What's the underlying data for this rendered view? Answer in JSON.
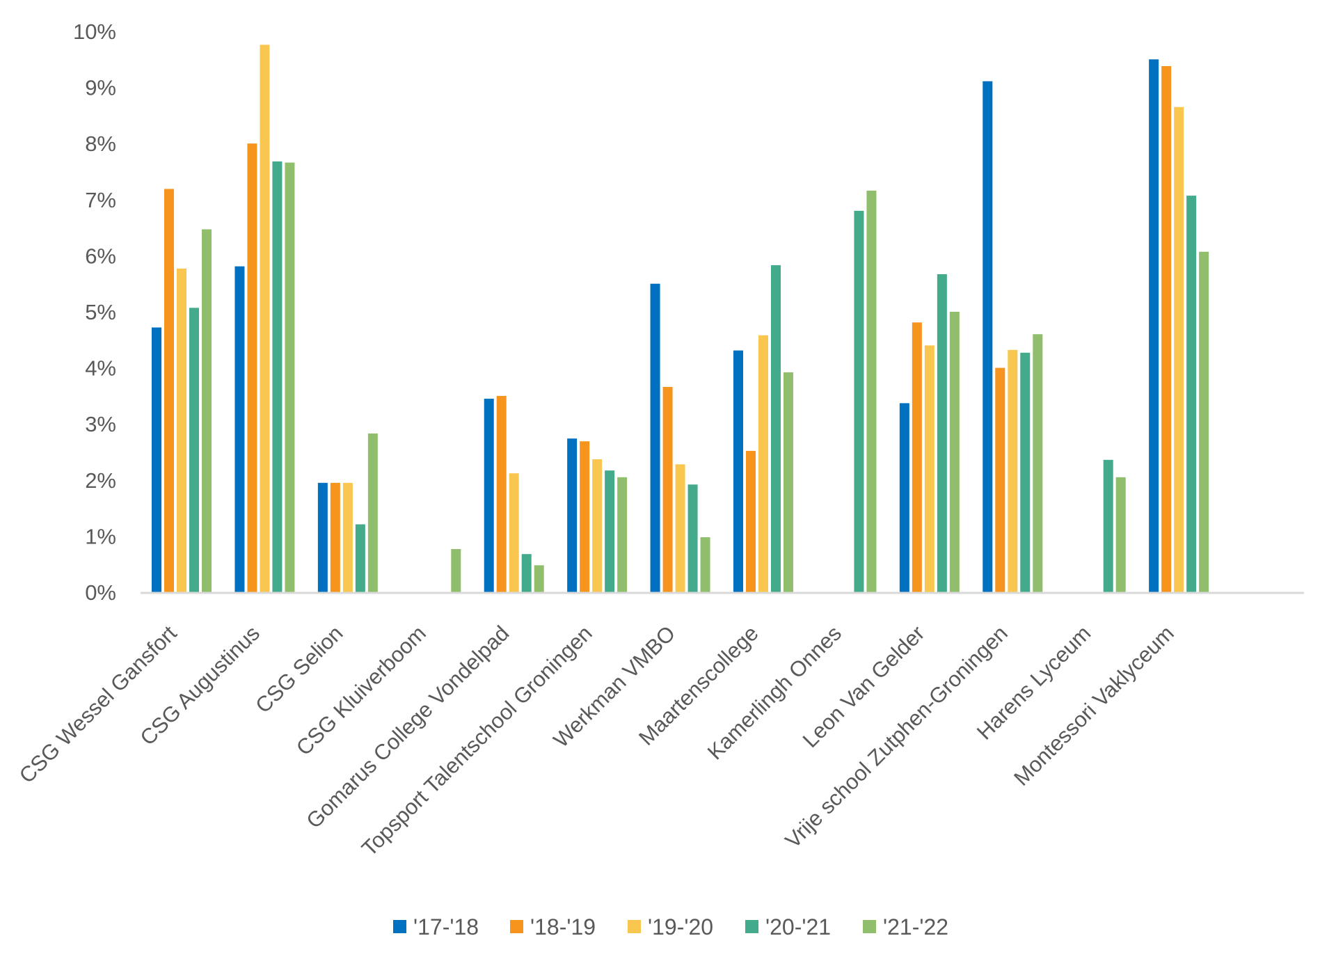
{
  "chart_data": {
    "type": "bar",
    "title": "",
    "xlabel": "",
    "ylabel": "",
    "ylim": [
      0,
      10
    ],
    "y_unit": "%",
    "y_ticks": [
      "0%",
      "1%",
      "2%",
      "3%",
      "4%",
      "5%",
      "6%",
      "7%",
      "8%",
      "9%",
      "10%"
    ],
    "grid": false,
    "legend_position": "bottom",
    "categories": [
      "CSG Wessel Gansfort",
      "CSG Augustinus",
      "CSG Selion",
      "CSG Kluiverboom",
      "Gomarus College Vondelpad",
      "Topsport Talentschool Groningen",
      "Werkman VMBO",
      "Maartenscollege",
      "Kamerlingh Onnes",
      "Leon Van Gelder",
      "Vrije school Zutphen-Groningen",
      "Harens Lyceum",
      "Montessori Vaklyceum"
    ],
    "series": [
      {
        "name": "'17-'18",
        "color": "#0070c0",
        "values": [
          4.72,
          5.81,
          1.95,
          null,
          3.45,
          2.74,
          5.5,
          4.31,
          null,
          3.37,
          9.11,
          null,
          9.5
        ]
      },
      {
        "name": "'18-'19",
        "color": "#f7941d",
        "values": [
          7.19,
          8.0,
          1.95,
          null,
          3.5,
          2.69,
          3.66,
          2.52,
          null,
          4.81,
          4.0,
          null,
          9.38
        ]
      },
      {
        "name": "'19-'20",
        "color": "#f9c74f",
        "values": [
          5.77,
          9.76,
          1.95,
          null,
          2.12,
          2.37,
          2.28,
          4.58,
          null,
          4.4,
          4.32,
          null,
          8.65
        ]
      },
      {
        "name": "'20-'21",
        "color": "#43aa8b",
        "values": [
          5.07,
          7.68,
          1.21,
          null,
          0.68,
          2.17,
          1.92,
          5.83,
          6.8,
          5.67,
          4.27,
          2.36,
          7.07
        ]
      },
      {
        "name": "'21-'22",
        "color": "#90be6d",
        "values": [
          6.47,
          7.66,
          2.83,
          0.77,
          0.48,
          2.05,
          0.98,
          3.92,
          7.16,
          5.0,
          4.6,
          2.05,
          6.07
        ]
      }
    ]
  }
}
